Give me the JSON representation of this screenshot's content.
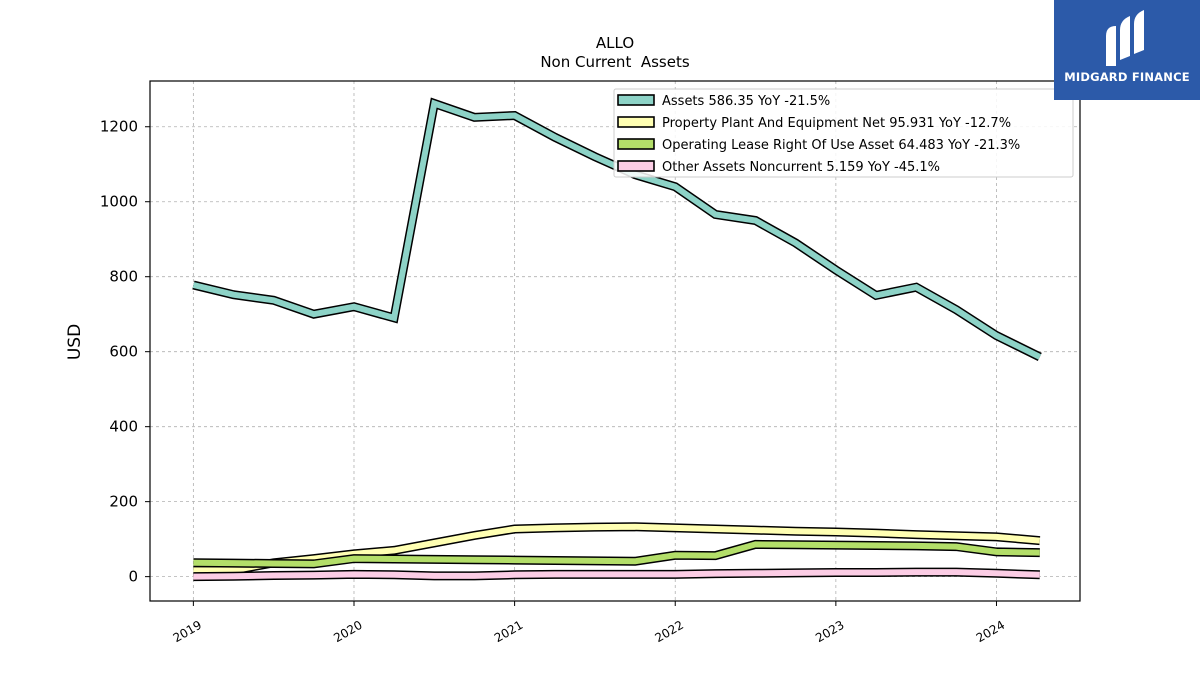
{
  "chart_data": {
    "type": "line",
    "title": "ALLO",
    "subtitle": "Non Current  Assets",
    "xlabel": "",
    "ylabel": "USD",
    "x_ticks": [
      "2019",
      "2020",
      "2021",
      "2022",
      "2023",
      "2024"
    ],
    "y_ticks": [
      "0",
      "200",
      "400",
      "600",
      "800",
      "1000",
      "1200"
    ],
    "ylim": [
      -65,
      1322
    ],
    "xlim": [
      2018.73,
      2024.52
    ],
    "grid": true,
    "legend_position": "top-right",
    "x": [
      2019.0,
      2019.25,
      2019.5,
      2019.75,
      2020.0,
      2020.25,
      2020.5,
      2020.75,
      2021.0,
      2021.25,
      2021.5,
      2021.75,
      2022.0,
      2022.25,
      2022.5,
      2022.75,
      2023.0,
      2023.25,
      2023.5,
      2023.75,
      2024.0,
      2024.27
    ],
    "series": [
      {
        "name": "Assets  586.35 YoY -21.5%",
        "color": "#8dd3c7",
        "values": [
          778,
          752,
          737,
          700,
          720,
          690,
          1262,
          1225,
          1230,
          1172,
          1120,
          1072,
          1040,
          966,
          950,
          890,
          818,
          750,
          772,
          712,
          643,
          586
        ]
      },
      {
        "name": "Property Plant And Equipment Net  95.931 YoY -12.7%",
        "color": "#ffffb3",
        "values": [
          17,
          17,
          37,
          48,
          61,
          70,
          90,
          110,
          127,
          130,
          132,
          133,
          130,
          127,
          124,
          121,
          119,
          116,
          112,
          109,
          106,
          96
        ]
      },
      {
        "name": "Operating Lease Right Of Use Asset  64.483 YoY -21.3%",
        "color": "#b3de69",
        "values": [
          37,
          36,
          35,
          34,
          48,
          47,
          46,
          45,
          44,
          43,
          42,
          41,
          57,
          56,
          86,
          85,
          84,
          83,
          82,
          80,
          66,
          64
        ]
      },
      {
        "name": "Other Assets Noncurrent  5.159 YoY -45.1%",
        "color": "#fccde5",
        "values": [
          0,
          1,
          3,
          4,
          6,
          5,
          2,
          2,
          5,
          6,
          6,
          6,
          6,
          8,
          9,
          10,
          11,
          11,
          12,
          12,
          9,
          5
        ]
      }
    ]
  },
  "logo": {
    "text": "MIDGARD FINANCE",
    "bg_color": "#2c5aa9"
  }
}
